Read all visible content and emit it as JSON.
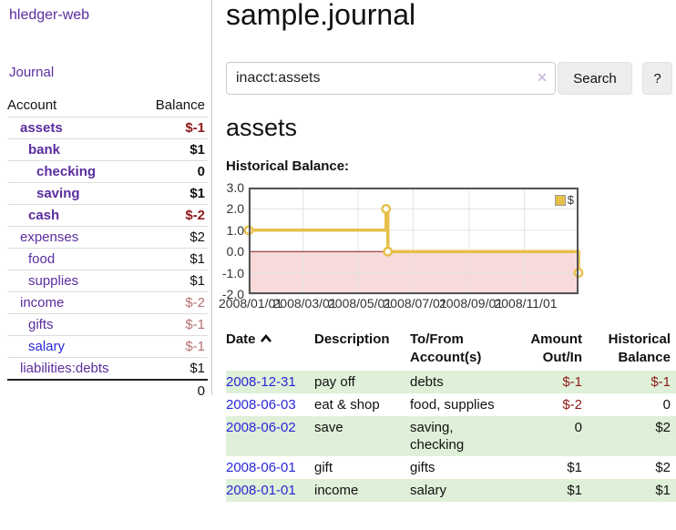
{
  "app": {
    "brand": "hledger-web",
    "nav": {
      "journal": "Journal"
    }
  },
  "sidebar": {
    "header": {
      "account": "Account",
      "balance": "Balance"
    },
    "rows": [
      {
        "name": "assets",
        "balance": "$-1"
      },
      {
        "name": "bank",
        "balance": "$1"
      },
      {
        "name": "checking",
        "balance": "0"
      },
      {
        "name": "saving",
        "balance": "$1"
      },
      {
        "name": "cash",
        "balance": "$-2"
      },
      {
        "name": "expenses",
        "balance": "$2"
      },
      {
        "name": "food",
        "balance": "$1"
      },
      {
        "name": "supplies",
        "balance": "$1"
      },
      {
        "name": "income",
        "balance": "$-2"
      },
      {
        "name": "gifts",
        "balance": "$-1"
      },
      {
        "name": "salary",
        "balance": "$-1"
      },
      {
        "name": "liabilities:debts",
        "balance": "$1"
      }
    ],
    "total": "0"
  },
  "header": {
    "title": "sample.journal"
  },
  "search": {
    "value": "inacct:assets",
    "clear_icon": "×",
    "button": "Search",
    "help_button": "?"
  },
  "account_page": {
    "title": "assets",
    "chart_label": "Historical Balance:"
  },
  "chart_data": {
    "type": "line",
    "step": true,
    "title": "Historical Balance:",
    "series": [
      {
        "name": "$",
        "color": "#e6c04a",
        "points": [
          {
            "date": "2008-01-01",
            "day": 0,
            "value": 1
          },
          {
            "date": "2008-06-01",
            "day": 152,
            "value": 2
          },
          {
            "date": "2008-06-03",
            "day": 154,
            "value": 0
          },
          {
            "date": "2008-12-31",
            "day": 365,
            "value": -1
          }
        ]
      }
    ],
    "xlim_days": [
      0,
      365
    ],
    "ylim": [
      -2,
      3
    ],
    "xticks": [
      {
        "day": 0,
        "label": "2008/01/01"
      },
      {
        "day": 60,
        "label": "2008/03/01"
      },
      {
        "day": 121,
        "label": "2008/05/01"
      },
      {
        "day": 182,
        "label": "2008/07/01"
      },
      {
        "day": 244,
        "label": "2008/09/01"
      },
      {
        "day": 305,
        "label": "2008/11/01"
      }
    ],
    "yticks": [
      3.0,
      2.0,
      1.0,
      0.0,
      -1.0,
      -2.0
    ],
    "grid": true,
    "legend": {
      "position": "top-right",
      "label": "$",
      "swatch_color": "#e6c04a"
    },
    "negative_region_fill": "#f9dada",
    "zero_line_color": "#8b1a1a",
    "grid_color": "#e3e3e3",
    "border_color": "#545454"
  },
  "register": {
    "columns": {
      "date": "Date",
      "description": "Description",
      "accounts": "To/From Account(s)",
      "amount": "Amount Out/In",
      "balance": "Historical Balance"
    },
    "rows": [
      {
        "date": "2008-12-31",
        "description": "pay off",
        "accounts": "debts",
        "amount": "$-1",
        "balance": "$-1"
      },
      {
        "date": "2008-06-03",
        "description": "eat & shop",
        "accounts": "food, supplies",
        "amount": "$-2",
        "balance": "0"
      },
      {
        "date": "2008-06-02",
        "description": "save",
        "accounts": "saving, checking",
        "amount": "0",
        "balance": "$2"
      },
      {
        "date": "2008-06-01",
        "description": "gift",
        "accounts": "gifts",
        "amount": "$1",
        "balance": "$2"
      },
      {
        "date": "2008-01-01",
        "description": "income",
        "accounts": "salary",
        "amount": "$1",
        "balance": "$1"
      }
    ]
  },
  "colors": {
    "link_purple": "#5b2d9e",
    "link_blue": "#2727d8",
    "negative_strong": "#8f1a1a",
    "negative_soft": "#b97070",
    "row_stripe_green": "#dff0d8",
    "chart_gold": "#e6c04a"
  }
}
